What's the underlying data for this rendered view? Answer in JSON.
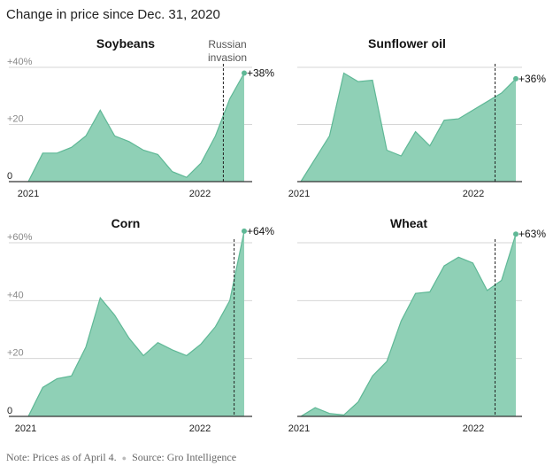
{
  "header": {
    "title": "Change in price since Dec. 31, 2020"
  },
  "footer": {
    "note": "Note: Prices as of April 4.",
    "source": "Source: Gro Intelligence"
  },
  "annotation": {
    "event_label_line1": "Russian",
    "event_label_line2": "invasion"
  },
  "colors": {
    "area_fill": "#8fd0b6",
    "area_stroke": "#5fb896",
    "endpoint": "#5fb896",
    "grid": "#d6d6d6",
    "axis": "#333333"
  },
  "chart_data": [
    {
      "type": "area",
      "title": "Soybeans",
      "x_tick_labels": [
        "2021",
        "2022"
      ],
      "y_tick_labels": [
        "0",
        "+20",
        "+40%"
      ],
      "y_ticks": [
        0,
        20,
        40
      ],
      "ylim": [
        0,
        40
      ],
      "xlim": [
        0,
        15
      ],
      "event_x": 13.55,
      "end_label": "+38%",
      "x": [
        0,
        1,
        2,
        3,
        4,
        5,
        6,
        7,
        8,
        9,
        10,
        11,
        12,
        13,
        14,
        15
      ],
      "values": [
        0,
        10,
        10,
        12,
        16,
        25,
        16,
        14,
        11,
        9.5,
        3.5,
        1.5,
        6.5,
        16,
        29,
        38
      ]
    },
    {
      "type": "area",
      "title": "Sunflower oil",
      "x_tick_labels": [
        "2021",
        "2022"
      ],
      "y_tick_labels": [],
      "y_ticks": [
        0,
        20,
        40
      ],
      "ylim": [
        0,
        40
      ],
      "xlim": [
        0,
        15
      ],
      "event_x": 13.55,
      "end_label": "+36%",
      "x": [
        0,
        1,
        2,
        3,
        4,
        5,
        6,
        7,
        8,
        9,
        10,
        11,
        12,
        13,
        14,
        15
      ],
      "values": [
        0,
        8,
        16,
        38,
        35,
        35.5,
        11,
        9,
        17.5,
        12.5,
        21.5,
        22,
        25,
        28,
        31,
        36
      ]
    },
    {
      "type": "area",
      "title": "Corn",
      "x_tick_labels": [
        "2021",
        "2022"
      ],
      "y_tick_labels": [
        "0",
        "+20",
        "+40",
        "+60%"
      ],
      "y_ticks": [
        0,
        20,
        40,
        60
      ],
      "ylim": [
        0,
        60
      ],
      "xlim": [
        0,
        15
      ],
      "event_x": 14.3,
      "end_label": "+64%",
      "x": [
        0,
        0.5,
        1,
        2,
        3,
        4,
        5,
        6,
        7,
        8,
        9,
        10,
        11,
        12,
        13,
        14,
        15
      ],
      "values": [
        0,
        5,
        10,
        13,
        14,
        24,
        41,
        35,
        27,
        21,
        25.5,
        23,
        21,
        25,
        31,
        40,
        64
      ]
    },
    {
      "type": "area",
      "title": "Wheat",
      "x_tick_labels": [
        "2021",
        "2022"
      ],
      "y_tick_labels": [],
      "y_ticks": [
        0,
        20,
        40,
        60
      ],
      "ylim": [
        0,
        60
      ],
      "xlim": [
        0,
        15
      ],
      "event_x": 13.55,
      "end_label": "+63%",
      "x": [
        0,
        1,
        2,
        3,
        4,
        5,
        6,
        7,
        8,
        9,
        10,
        11,
        12,
        13,
        14,
        15
      ],
      "values": [
        0,
        3,
        1,
        0.5,
        5,
        14,
        19,
        33,
        42.5,
        43,
        52,
        55,
        53,
        43.5,
        47,
        63
      ]
    }
  ]
}
